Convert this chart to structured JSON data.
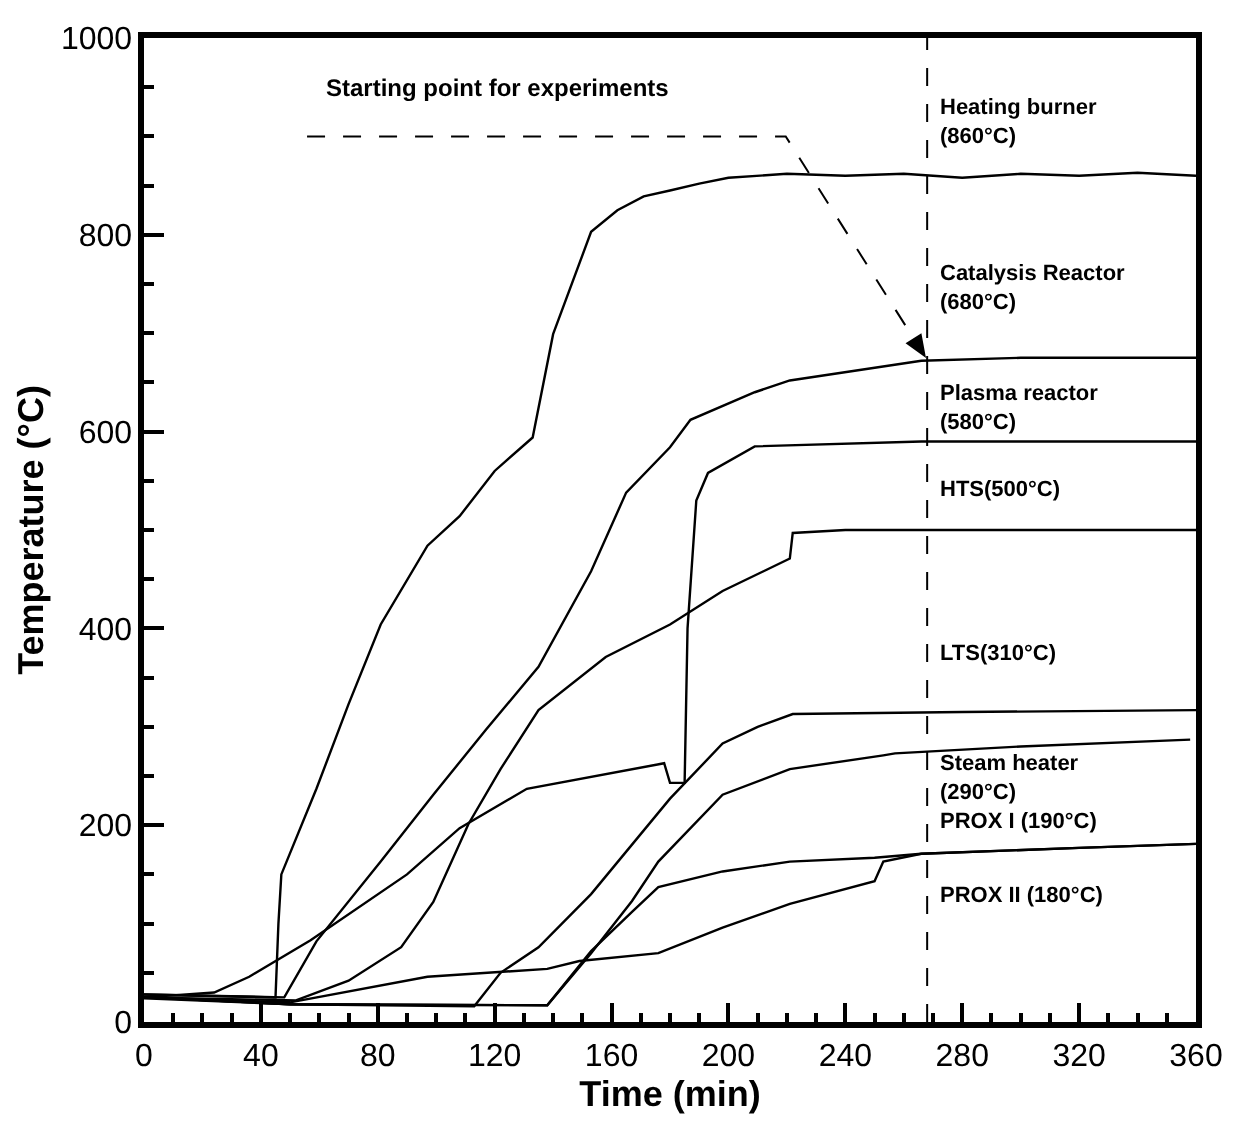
{
  "chart_data": {
    "type": "line",
    "xlabel": "Time (min)",
    "ylabel": "Temperature (°C)",
    "xlim": [
      0,
      360
    ],
    "xticks": [
      0,
      40,
      80,
      120,
      160,
      200,
      240,
      280,
      320,
      360
    ],
    "ylim": [
      0,
      1000
    ],
    "yticks": [
      0,
      200,
      400,
      600,
      800,
      1000
    ],
    "legend": false,
    "marker": "none",
    "line_style": "solid",
    "series": [
      {
        "name": "Heating burner\n(860°C)",
        "color": "#000000",
        "x": [
          0,
          45,
          46,
          47,
          59,
          70,
          81,
          97,
          108,
          120,
          133,
          140,
          153,
          162,
          171,
          180,
          190,
          200,
          220,
          240,
          260,
          280,
          300,
          320,
          340,
          360
        ],
        "values": [
          28,
          25,
          100,
          150,
          237,
          323,
          404,
          484,
          514,
          560,
          594,
          699,
          803,
          825,
          839,
          845,
          852,
          858,
          862,
          860,
          862,
          858,
          862,
          860,
          863,
          860
        ]
      },
      {
        "name": "Catalysis Reactor\n(680°C)",
        "color": "#000000",
        "x": [
          0,
          48,
          59,
          81,
          99,
          117,
          135,
          153,
          165,
          180,
          187,
          209,
          221,
          266,
          300,
          360
        ],
        "values": [
          28,
          25,
          82,
          163,
          231,
          297,
          361,
          458,
          538,
          584,
          612,
          640,
          652,
          672,
          675,
          675
        ]
      },
      {
        "name": "Plasma reactor\n(580°C)",
        "color": "#000000",
        "x": [
          0,
          24,
          36,
          57,
          90,
          108,
          131,
          178,
          180,
          185,
          186,
          189,
          193,
          209,
          266,
          360
        ],
        "values": [
          25,
          30,
          46,
          83,
          150,
          197,
          237,
          263,
          243,
          243,
          400,
          530,
          558,
          585,
          590,
          590
        ]
      },
      {
        "name": "HTS(500°C)",
        "color": "#000000",
        "x": [
          0,
          52,
          70,
          88,
          99,
          111,
          122,
          135,
          158,
          180,
          198,
          221,
          222,
          240,
          300,
          360
        ],
        "values": [
          25,
          22,
          42,
          76,
          122,
          201,
          257,
          317,
          371,
          404,
          438,
          471,
          497,
          500,
          500,
          500
        ]
      },
      {
        "name": "LTS(310°C)",
        "color": "#000000",
        "x": [
          0,
          50,
          113,
          122,
          135,
          153,
          180,
          198,
          210,
          222,
          280,
          360
        ],
        "values": [
          25,
          18,
          16,
          50,
          76,
          130,
          227,
          283,
          300,
          313,
          315,
          317
        ]
      },
      {
        "name": "Steam heater\n(290°C)",
        "color": "#000000",
        "x": [
          0,
          50,
          138,
          153,
          167,
          176,
          198,
          221,
          253,
          257,
          300,
          358
        ],
        "values": [
          25,
          18,
          17,
          70,
          123,
          163,
          231,
          257,
          271,
          273,
          280,
          287
        ]
      },
      {
        "name": "PROX I (190°C)",
        "color": "#000000",
        "x": [
          0,
          50,
          138,
          153,
          167,
          176,
          198,
          221,
          250,
          266,
          320,
          360
        ],
        "values": [
          24,
          18,
          17,
          72,
          112,
          137,
          153,
          163,
          167,
          171,
          177,
          181
        ]
      },
      {
        "name": "PROX II (180°C)",
        "color": "#000000",
        "x": [
          0,
          50,
          97,
          138,
          149,
          176,
          198,
          221,
          250,
          253,
          266,
          320,
          360
        ],
        "values": [
          25,
          20,
          46,
          54,
          62,
          70,
          96,
          120,
          143,
          163,
          171,
          177,
          181
        ]
      }
    ],
    "ref_lines": [
      {
        "axis": "x",
        "value": 268,
        "color": "#000000",
        "line_style": "dashed"
      }
    ],
    "annotations": [
      "Starting point for experiments"
    ]
  }
}
